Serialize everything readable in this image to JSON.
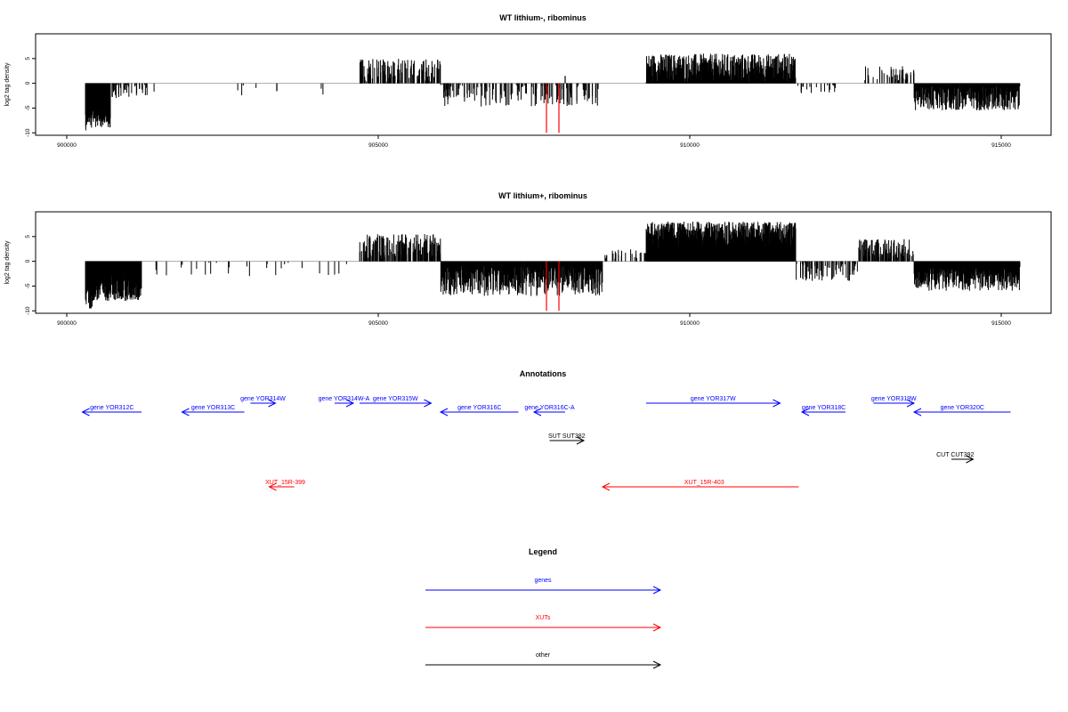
{
  "chart_data": [
    {
      "type": "bar",
      "title": "WT lithium-, ribominus",
      "xlabel": "",
      "ylabel": "log2 tag density",
      "xlim": [
        899500,
        915800
      ],
      "ylim": [
        -10.5,
        10
      ],
      "xticks": [
        900000,
        905000,
        910000,
        915000
      ],
      "yticks": [
        -10,
        -5,
        0,
        5
      ],
      "ytick_labels": [
        "-10",
        "-5",
        "0",
        "5"
      ],
      "bar_color": "#000000",
      "baseline_color": "#aaaaaa",
      "segments": [
        {
          "name": "",
          "start": 900300,
          "end": 900700,
          "sign": -1,
          "mean": 6.0,
          "amp": 3.0,
          "density": 55,
          "dense": true
        },
        {
          "name": "",
          "start": 900700,
          "end": 901300,
          "sign": -1,
          "mean": 1.5,
          "amp": 1.5,
          "density": 10,
          "dense": false
        },
        {
          "name": "",
          "start": 901300,
          "end": 904500,
          "sign": -1,
          "mean": 1.5,
          "amp": 1.5,
          "density": 0.4,
          "dense": false
        },
        {
          "name": "",
          "start": 904700,
          "end": 906000,
          "sign": 1,
          "mean": 2.5,
          "amp": 2.5,
          "density": 14,
          "dense": false
        },
        {
          "name": "",
          "start": 906000,
          "end": 908600,
          "sign": -1,
          "mean": 2.5,
          "amp": 2.2,
          "density": 8,
          "dense": false
        },
        {
          "name": "",
          "start": 909300,
          "end": 911700,
          "sign": 1,
          "mean": 3.0,
          "amp": 3.0,
          "density": 30,
          "dense": true
        },
        {
          "name": "",
          "start": 911700,
          "end": 912700,
          "sign": -1,
          "mean": 1.2,
          "amp": 1.0,
          "density": 3,
          "dense": false
        },
        {
          "name": "",
          "start": 912800,
          "end": 913600,
          "sign": 1,
          "mean": 2.0,
          "amp": 1.5,
          "density": 8,
          "dense": false
        },
        {
          "name": "",
          "start": 913600,
          "end": 915300,
          "sign": -1,
          "mean": 3.0,
          "amp": 2.5,
          "density": 22,
          "dense": true
        }
      ],
      "spikes": [
        {
          "x": 907700,
          "y": -10,
          "color": "#ff0000"
        },
        {
          "x": 907900,
          "y": -10,
          "color": "#ff0000"
        },
        {
          "x": 908000,
          "y": 1.5,
          "color": "#000000"
        }
      ]
    },
    {
      "type": "bar",
      "title": "WT lithium+, ribominus",
      "xlabel": "",
      "ylabel": "log2 tag density",
      "xlim": [
        899500,
        915800
      ],
      "ylim": [
        -10.5,
        10
      ],
      "xticks": [
        900000,
        905000,
        910000,
        915000
      ],
      "yticks": [
        -10,
        -5,
        0,
        5
      ],
      "ytick_labels": [
        "-10",
        "-5",
        "0",
        "5"
      ],
      "bar_color": "#000000",
      "baseline_color": "#aaaaaa",
      "segments": [
        {
          "name": "",
          "start": 900300,
          "end": 901200,
          "sign": -1,
          "mean": 5.0,
          "amp": 3.0,
          "density": 45,
          "dense": true
        },
        {
          "name": "",
          "start": 901200,
          "end": 904500,
          "sign": -1,
          "mean": 1.5,
          "amp": 1.5,
          "density": 1.2,
          "dense": false
        },
        {
          "name": "",
          "start": 904700,
          "end": 906000,
          "sign": 1,
          "mean": 3.0,
          "amp": 2.5,
          "density": 20,
          "dense": false
        },
        {
          "name": "",
          "start": 906000,
          "end": 908600,
          "sign": -1,
          "mean": 4.0,
          "amp": 3.0,
          "density": 22,
          "dense": true
        },
        {
          "name": "",
          "start": 908600,
          "end": 909300,
          "sign": 1,
          "mean": 1.5,
          "amp": 1.0,
          "density": 5,
          "dense": false
        },
        {
          "name": "",
          "start": 909300,
          "end": 911700,
          "sign": 1,
          "mean": 5.0,
          "amp": 3.0,
          "density": 45,
          "dense": true
        },
        {
          "name": "",
          "start": 911700,
          "end": 912700,
          "sign": -1,
          "mean": 2.0,
          "amp": 2.0,
          "density": 10,
          "dense": false
        },
        {
          "name": "",
          "start": 912700,
          "end": 913600,
          "sign": 1,
          "mean": 2.5,
          "amp": 2.0,
          "density": 18,
          "dense": false
        },
        {
          "name": "",
          "start": 913600,
          "end": 915300,
          "sign": -1,
          "mean": 3.5,
          "amp": 2.5,
          "density": 28,
          "dense": true
        }
      ],
      "spikes": [
        {
          "x": 907700,
          "y": -10,
          "color": "#ff0000"
        },
        {
          "x": 907900,
          "y": -10,
          "color": "#ff0000"
        }
      ]
    },
    {
      "type": "annotation-track",
      "title": "Annotations",
      "xlim": [
        899500,
        915800
      ],
      "genes": [
        {
          "label": "gene YOR312C",
          "start": 901200,
          "end": 900250,
          "lane": 1
        },
        {
          "label": "gene YOR313C",
          "start": 902850,
          "end": 901850,
          "lane": 1
        },
        {
          "label": "gene YOR314W",
          "start": 902950,
          "end": 903350,
          "lane": 0
        },
        {
          "label": "gene YOR314W-A",
          "start": 904300,
          "end": 904600,
          "lane": 0
        },
        {
          "label": "gene YOR315W",
          "start": 904700,
          "end": 905850,
          "lane": 0
        },
        {
          "label": "gene YOR316C",
          "start": 907250,
          "end": 906000,
          "lane": 1
        },
        {
          "label": "gene YOR316C-A",
          "start": 908000,
          "end": 907500,
          "lane": 1
        },
        {
          "label": "gene YOR317W",
          "start": 909300,
          "end": 911450,
          "lane": 0
        },
        {
          "label": "gene YOR318C",
          "start": 912500,
          "end": 911800,
          "lane": 1
        },
        {
          "label": "gene YOR319W",
          "start": 912950,
          "end": 913600,
          "lane": 0
        },
        {
          "label": "gene YOR320C",
          "start": 915150,
          "end": 913600,
          "lane": 1
        }
      ],
      "suts": [
        {
          "label": "SUT SUT382",
          "start": 907750,
          "end": 908300,
          "lane": 0
        }
      ],
      "cuts": [
        {
          "label": "CUT CUT392",
          "start": 914200,
          "end": 914550,
          "lane": 0
        }
      ],
      "xuts": [
        {
          "label": "XUT_15R-399",
          "start": 903650,
          "end": 903250,
          "lane": 0
        },
        {
          "label": "XUT_15R-403",
          "start": 911750,
          "end": 908600,
          "lane": 0
        }
      ]
    }
  ],
  "legend": {
    "title": "Legend",
    "items": [
      {
        "label": "genes",
        "color": "#0000ff"
      },
      {
        "label": "XUTs",
        "color": "#ff0000"
      },
      {
        "label": "other",
        "color": "#000000"
      }
    ]
  },
  "colors": {
    "genes": "#0000ff",
    "xuts": "#ff0000",
    "other": "#000000"
  }
}
